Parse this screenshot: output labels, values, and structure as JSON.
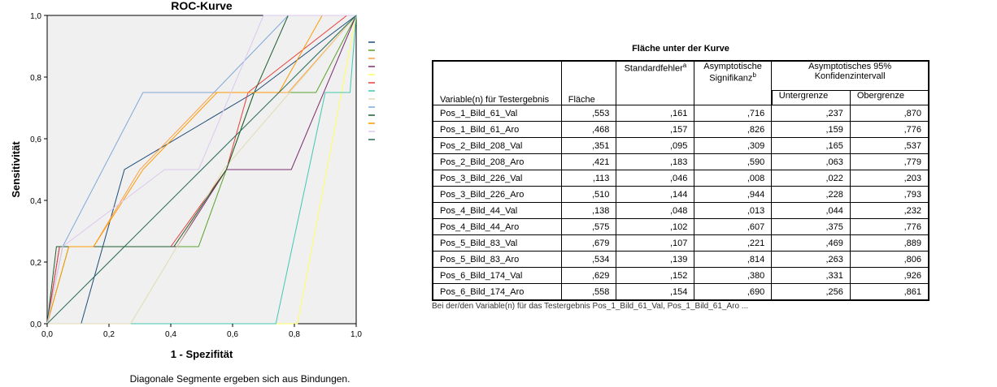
{
  "chart_data": {
    "type": "line",
    "title": "ROC-Kurve",
    "xlabel": "1 - Spezifität",
    "ylabel": "Sensitivität",
    "xlim": [
      0,
      1
    ],
    "ylim": [
      0,
      1
    ],
    "x_tick_labels": [
      "0,0",
      "0,2",
      "0,4",
      "0,6",
      "0,8",
      "1,0"
    ],
    "y_tick_labels": [
      "0,0",
      "0,2",
      "0,4",
      "0,6",
      "0,8",
      "1,0"
    ],
    "note": "Diagonale Segmente ergeben sich aus Bindungen.",
    "legend_position": "right",
    "plot_background": "#f0f0f0",
    "series": [
      {
        "color": "#1f4e79",
        "points": [
          [
            0,
            0
          ],
          [
            0.11,
            0
          ],
          [
            0.25,
            0.5
          ],
          [
            0.67,
            0.75
          ],
          [
            1,
            1
          ]
        ]
      },
      {
        "color": "#5aa02c",
        "points": [
          [
            0,
            0
          ],
          [
            0.07,
            0.25
          ],
          [
            0.49,
            0.25
          ],
          [
            0.58,
            0.5
          ],
          [
            0.67,
            0.75
          ],
          [
            0.87,
            0.75
          ],
          [
            1,
            1
          ]
        ]
      },
      {
        "color": "#ff9f40",
        "points": [
          [
            0,
            0
          ],
          [
            0.05,
            0.25
          ],
          [
            0.15,
            0.25
          ],
          [
            0.3,
            0.5
          ],
          [
            0.54,
            0.75
          ],
          [
            0.78,
            0.75
          ],
          [
            1,
            1
          ]
        ]
      },
      {
        "color": "#7b2d6e",
        "points": [
          [
            0,
            0
          ],
          [
            0.04,
            0.25
          ],
          [
            0.42,
            0.25
          ],
          [
            0.58,
            0.5
          ],
          [
            0.79,
            0.5
          ],
          [
            1,
            1
          ]
        ]
      },
      {
        "color": "#ffff60",
        "points": [
          [
            0,
            0
          ],
          [
            0.81,
            0
          ],
          [
            1,
            1
          ]
        ]
      },
      {
        "color": "#e8413c",
        "points": [
          [
            0,
            0
          ],
          [
            0.04,
            0.25
          ],
          [
            0.4,
            0.25
          ],
          [
            0.58,
            0.5
          ],
          [
            0.65,
            0.75
          ],
          [
            0.97,
            1
          ],
          [
            1,
            1
          ]
        ]
      },
      {
        "color": "#40c8b0",
        "points": [
          [
            0,
            0
          ],
          [
            0.74,
            0
          ],
          [
            0.9,
            0.75
          ],
          [
            0.98,
            0.75
          ],
          [
            1,
            1
          ]
        ]
      },
      {
        "color": "#e0dcb0",
        "points": [
          [
            0,
            0
          ],
          [
            0.27,
            0
          ],
          [
            0.57,
            0.5
          ],
          [
            1,
            1
          ]
        ]
      },
      {
        "color": "#7ea8d8",
        "points": [
          [
            0,
            0
          ],
          [
            0.05,
            0.25
          ],
          [
            0.31,
            0.75
          ],
          [
            0.54,
            0.75
          ],
          [
            0.78,
            1
          ],
          [
            1,
            1
          ]
        ]
      },
      {
        "color": "#1e5c32",
        "points": [
          [
            0,
            0
          ],
          [
            0.03,
            0.25
          ],
          [
            0.41,
            0.25
          ],
          [
            0.58,
            0.5
          ],
          [
            0.67,
            0.75
          ],
          [
            0.78,
            1
          ],
          [
            1,
            1
          ]
        ]
      },
      {
        "color": "#ff9900",
        "points": [
          [
            0,
            0
          ],
          [
            0.07,
            0.25
          ],
          [
            0.15,
            0.25
          ],
          [
            0.31,
            0.5
          ],
          [
            0.55,
            0.75
          ],
          [
            0.75,
            0.75
          ],
          [
            0.89,
            1
          ],
          [
            1,
            1
          ]
        ]
      },
      {
        "color": "#dcc8f0",
        "points": [
          [
            0,
            0
          ],
          [
            0.05,
            0.25
          ],
          [
            0.38,
            0.5
          ],
          [
            0.49,
            0.5
          ],
          [
            0.7,
            1
          ],
          [
            1,
            1
          ]
        ]
      },
      {
        "color": "#2a6a56",
        "points": [
          [
            0,
            0
          ],
          [
            1,
            1
          ]
        ]
      }
    ]
  },
  "table": {
    "title": "Fläche unter der Kurve",
    "headers": {
      "variable": "Variable(n) für Testergebnis",
      "area": "Fläche",
      "std_error": "Standardfehler",
      "std_error_sup": "a",
      "asym_sig": "Asymptotische Signifikanz",
      "asym_sig_sup": "b",
      "ci_group": "Asymptotisches 95% Konfidenzintervall",
      "lower": "Untergrenze",
      "upper": "Obergrenze"
    },
    "rows": [
      {
        "variable": "Pos_1_Bild_61_Val",
        "area": ",553",
        "std_error": ",161",
        "sig": ",716",
        "lower": ",237",
        "upper": ",870"
      },
      {
        "variable": "Pos_1_Bild_61_Aro",
        "area": ",468",
        "std_error": ",157",
        "sig": ",826",
        "lower": ",159",
        "upper": ",776"
      },
      {
        "variable": "Pos_2_Bild_208_Val",
        "area": ",351",
        "std_error": ",095",
        "sig": ",309",
        "lower": ",165",
        "upper": ",537"
      },
      {
        "variable": "Pos_2_Bild_208_Aro",
        "area": ",421",
        "std_error": ",183",
        "sig": ",590",
        "lower": ",063",
        "upper": ",779"
      },
      {
        "variable": "Pos_3_Bild_226_Val",
        "area": ",113",
        "std_error": ",046",
        "sig": ",008",
        "lower": ",022",
        "upper": ",203"
      },
      {
        "variable": "Pos_3_Bild_226_Aro",
        "area": ",510",
        "std_error": ",144",
        "sig": ",944",
        "lower": ",228",
        "upper": ",793"
      },
      {
        "variable": "Pos_4_Bild_44_Val",
        "area": ",138",
        "std_error": ",048",
        "sig": ",013",
        "lower": ",044",
        "upper": ",232"
      },
      {
        "variable": "Pos_4_Bild_44_Aro",
        "area": ",575",
        "std_error": ",102",
        "sig": ",607",
        "lower": ",375",
        "upper": ",776"
      },
      {
        "variable": "Pos_5_Bild_83_Val",
        "area": ",679",
        "std_error": ",107",
        "sig": ",221",
        "lower": ",469",
        "upper": ",889"
      },
      {
        "variable": "Pos_5_Bild_83_Aro",
        "area": ",534",
        "std_error": ",139",
        "sig": ",814",
        "lower": ",263",
        "upper": ",806"
      },
      {
        "variable": "Pos_6_Bild_174_Val",
        "area": ",629",
        "std_error": ",152",
        "sig": ",380",
        "lower": ",331",
        "upper": ",926"
      },
      {
        "variable": "Pos_6_Bild_174_Aro",
        "area": ",558",
        "std_error": ",154",
        "sig": ",690",
        "lower": ",256",
        "upper": ",861"
      }
    ],
    "footnote_cut": "Bei der/den Variable(n) für das Testergebnis Pos_1_Bild_61_Val, Pos_1_Bild_61_Aro ..."
  }
}
